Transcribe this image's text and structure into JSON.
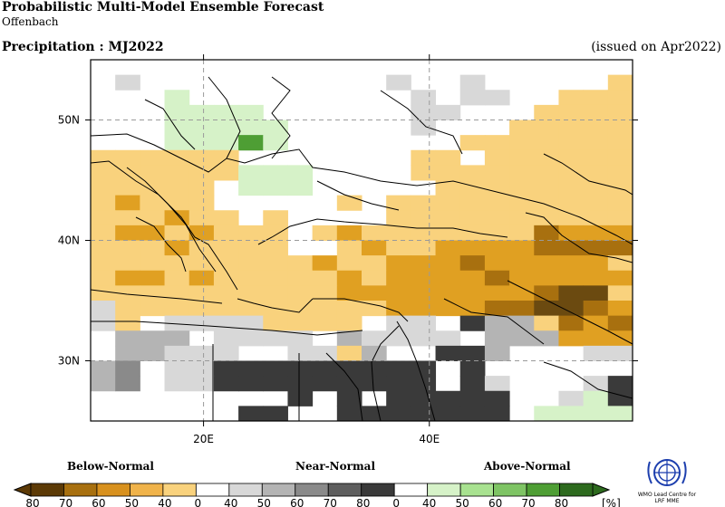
{
  "header": {
    "title": "Probabilistic Multi-Model Ensemble Forecast",
    "center": "Offenbach",
    "variable": "Precipitation : MJ2022",
    "issued": "(issued on Apr2022)"
  },
  "map": {
    "projection": "latitude-longitude",
    "lon_range": [
      10,
      58
    ],
    "lat_range": [
      25,
      55
    ],
    "grid_step_deg": 2.5,
    "lon_ticks": [
      {
        "value": 20,
        "label": "20E"
      },
      {
        "value": 40,
        "label": "40E"
      }
    ],
    "lat_ticks": [
      {
        "value": 30,
        "label": "30N"
      },
      {
        "value": 40,
        "label": "40N"
      },
      {
        "value": 50,
        "label": "50N"
      }
    ],
    "colors": {
      "B70": "#6b4a10",
      "B60": "#a8700f",
      "B50": "#e0a022",
      "B40": "#f9d27d",
      "N40": "#d8d8d8",
      "N50": "#b4b4b4",
      "N60": "#8a8a8a",
      "N70": "#5e5e5e",
      "N80": "#3a3a3a",
      "A40": "#d6f2c8",
      "A50": "#a8e290",
      "A60": "#4e9e34",
      "A70": "#2d6a1e"
    },
    "grid_rows_north_to_south": [
      "......................",
      ".N..........N..N.....B",
      "...A.........N.NN..BBB",
      "...AAAA......NN...BBBB",
      "...AAAAA.....N...BBBBB",
      "...AAA6A.......BBBBBBB",
      "BBBBBB.......BB.BBBBBB",
      "BBBBBBAAA....BBBBBBBBB",
      "BBBBB.AAA.....BBBBBBBB",
      "BCBBB.....B.BBBBBBBBBB",
      "BBBCBB.B....BBBBBBBBBB",
      "BCCBCBBB.BCBBBBBBBDCCC",
      "BBBCBBBB..BCBBCCCCDDDD",
      "BBBBBBBBBCBBCCCDCCCCCB",
      "BCCBCBBBBBCBCCCCDCCCCC",
      "BBBBBBBBBBCCCCCCCCDEEB",
      "NBBBBBBBBBBBCCCCDDEEDC",
      "NB.NNNNBBBB.NN.XQQBDCD",
      ".QQQ.NNNN.QNNNN.QQQCCC",
      ".QQNNN..NNBQ..XXQ...NN",
      "QP.NNXXXXXXXXX.X......",
      "QP.NNXXXXXXXXX.XN...NX",
      "........X.X.XXXXX..NAX",
      "......XX..XXXXXXX.AAAA"
    ]
  },
  "legend": {
    "categories": [
      "Below-Normal",
      "Near-Normal",
      "Above-Normal"
    ],
    "labels": [
      "80",
      "70",
      "60",
      "50",
      "40",
      "0",
      "40",
      "50",
      "60",
      "70",
      "80",
      "0",
      "40",
      "50",
      "60",
      "70",
      "80"
    ],
    "unit": "[%]",
    "colors": [
      "#5c3a06",
      "#a8700f",
      "#d8911e",
      "#f0b34a",
      "#f9d27d",
      "#ffffff",
      "#d8d8d8",
      "#b4b4b4",
      "#8a8a8a",
      "#5e5e5e",
      "#3a3a3a",
      "#ffffff",
      "#d6f2c8",
      "#a8e290",
      "#7ec464",
      "#4e9e34",
      "#2d6a1e"
    ]
  },
  "logo": {
    "line1": "WMO Lead Centre for",
    "line2": "LRF MME"
  }
}
